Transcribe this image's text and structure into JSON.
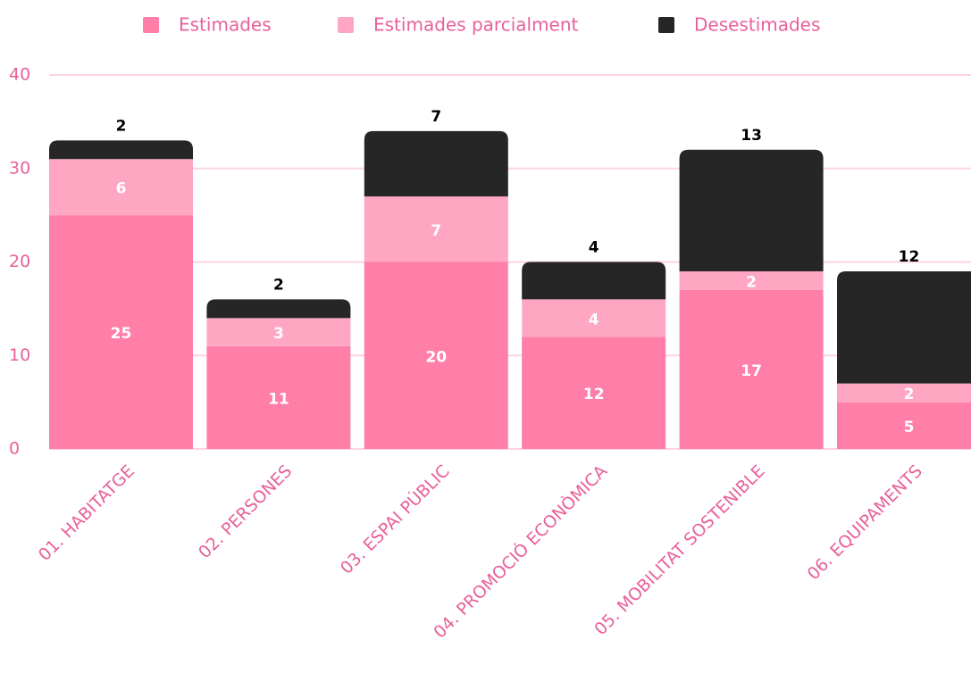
{
  "chart_data": {
    "type": "stacked_bar",
    "categories": [
      "01. HABITATGE",
      "02. PERSONES",
      "03. ESPAI PÚBLIC",
      "04. PROMOCIÓ ECONÒMICA",
      "05. MOBILITAT SOSTENIBLE",
      "06. EQUIPAMENTS"
    ],
    "series": [
      {
        "name": "Estimades",
        "color": "#ff7fa8",
        "values": [
          25,
          11,
          20,
          12,
          17,
          5
        ]
      },
      {
        "name": "Estimades parcialment",
        "color": "#ffa6c3",
        "values": [
          6,
          3,
          7,
          4,
          2,
          2
        ]
      },
      {
        "name": "Desestimades",
        "color": "#262626",
        "values": [
          2,
          2,
          7,
          4,
          13,
          12
        ]
      }
    ],
    "ylim": [
      0,
      40
    ],
    "yticks": [
      0,
      10,
      20,
      30,
      40
    ],
    "grid": true,
    "legend": "top"
  }
}
